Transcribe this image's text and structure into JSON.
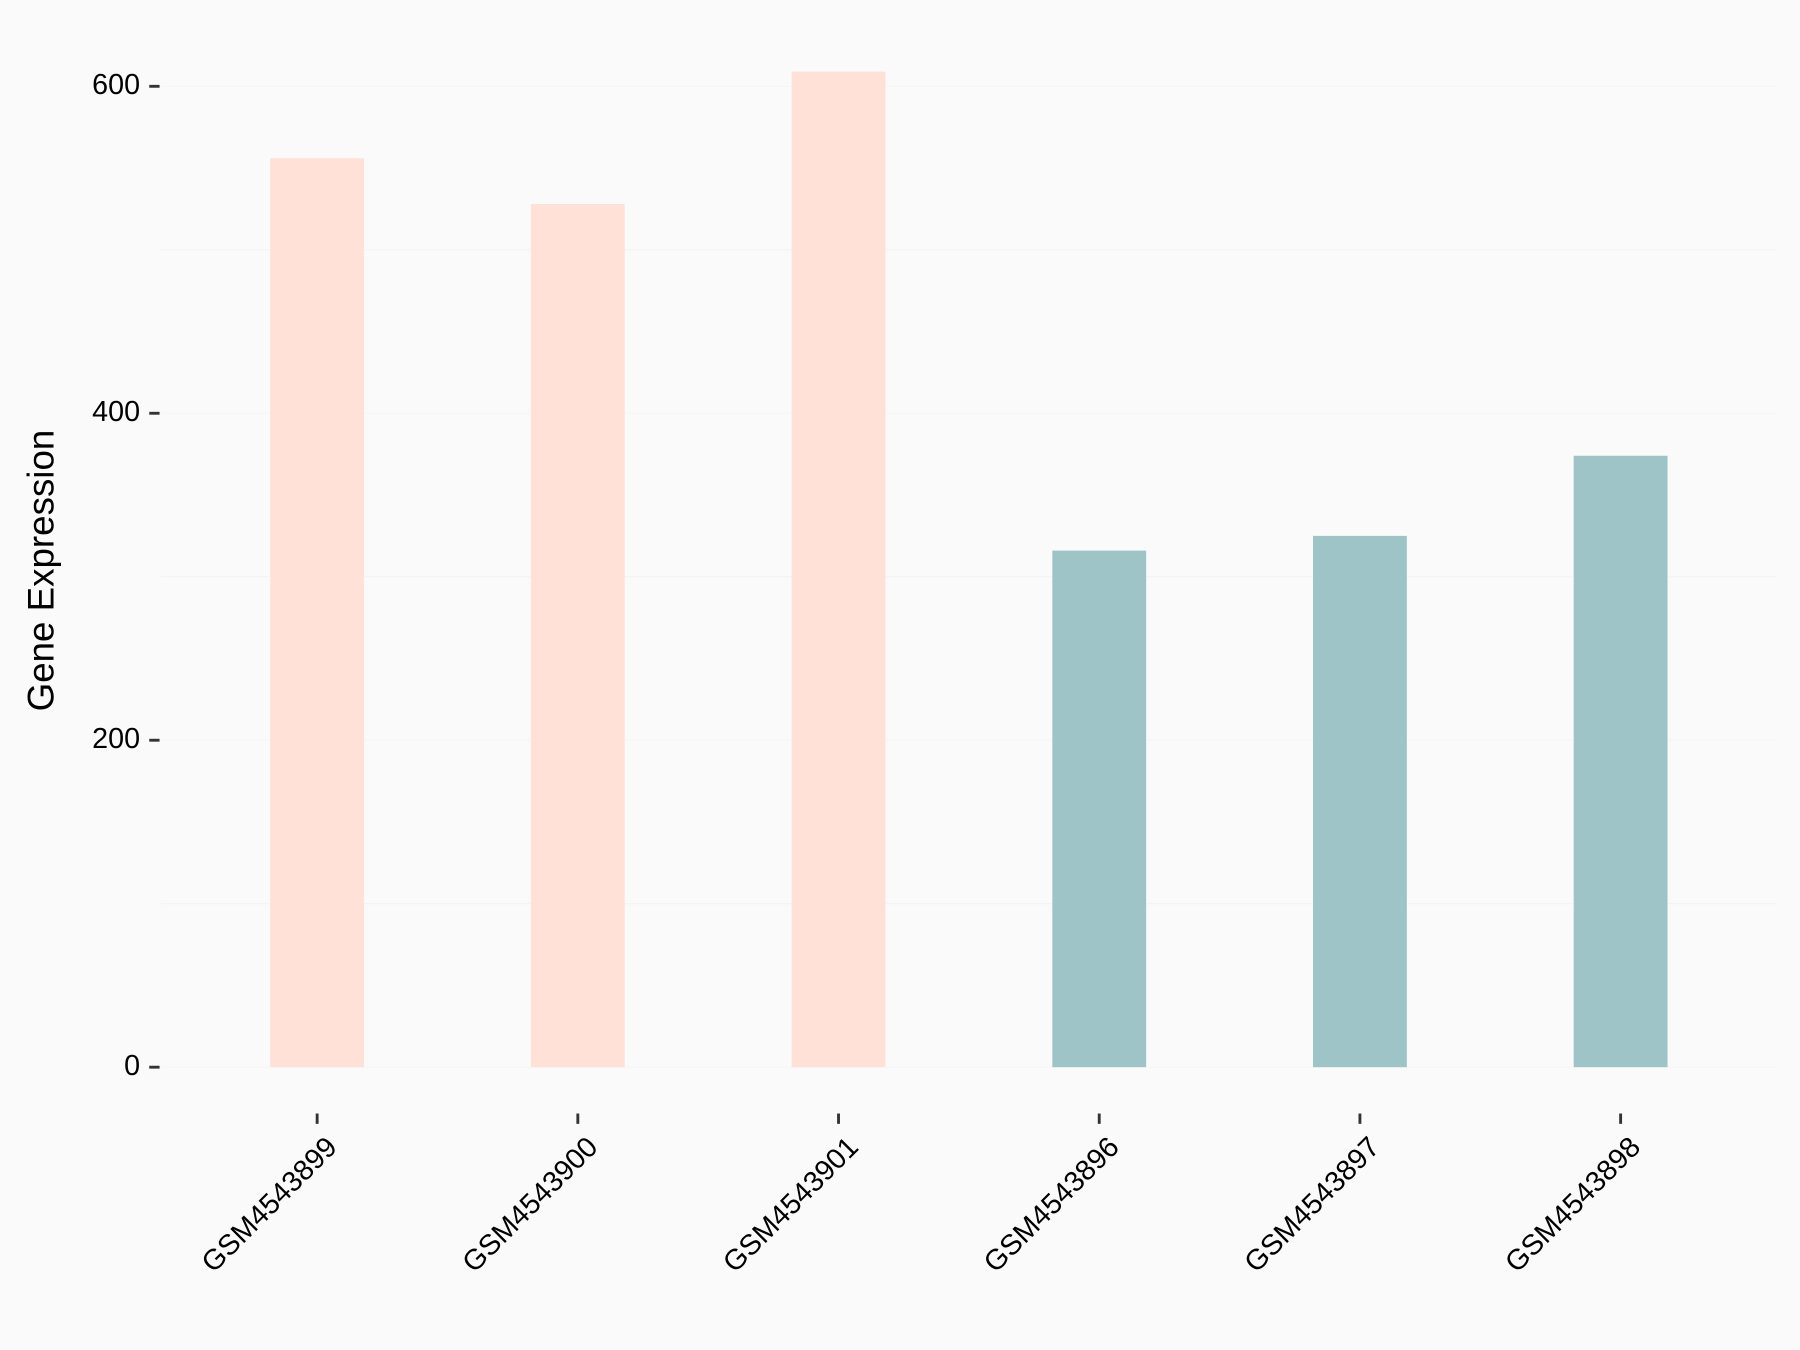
{
  "chart_data": {
    "type": "bar",
    "y_label": "Gene Expression",
    "categories": [
      "GSM4543899",
      "GSM4543900",
      "GSM4543901",
      "GSM4543896",
      "GSM4543897",
      "GSM4543898"
    ],
    "values": [
      556,
      528,
      609,
      316,
      325,
      374
    ],
    "colors": [
      "#ffe1d7",
      "#ffe1d7",
      "#ffe1d7",
      "#9ec4c8",
      "#9ec4c8",
      "#9ec4c8"
    ],
    "ylim": [
      -30.45,
      639.45
    ],
    "yticks": [
      0,
      200,
      400,
      600
    ],
    "minor_yticks": [
      100,
      300,
      500
    ],
    "grid": true
  }
}
